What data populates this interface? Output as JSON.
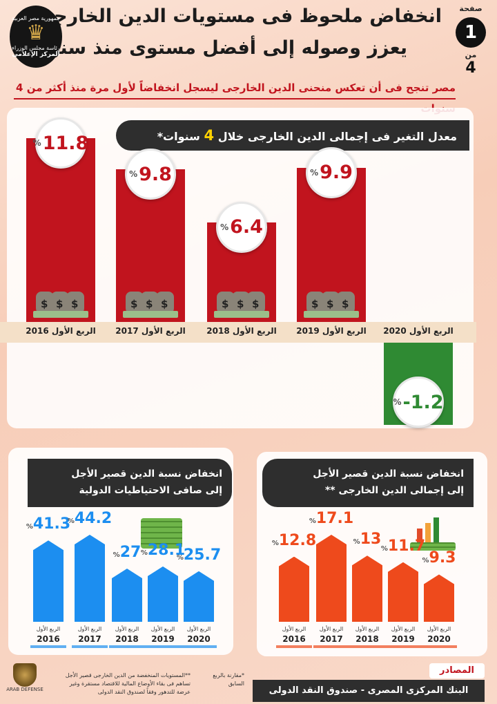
{
  "header": {
    "title_line1": "انخفاض ملحوظ فى مستويات الدين الخارجى",
    "title_line2": "يعزز وصوله إلى أفضل مستوى منذ سنوات",
    "page_label": "صفحة",
    "page_number": "1",
    "page_of": "من",
    "page_total": "4",
    "logo_text_top": "جمهورية مصر العربية",
    "logo_text_mid": "رئاسة مجلس الوزراء",
    "logo_text_bottom": "المركز الإعلامى"
  },
  "subtitle": "مصر تنجح فى أن تعكس منحنى الدين الخارجى ليسجل انخفاضاً لأول مرة منذ أكثر من 4 سنوات",
  "main_chart_title": {
    "before": "معدل التغير فى إجمالى الدين الخارجى خلال",
    "highlight": "4",
    "after": "سنوات*"
  },
  "colors": {
    "red": "#c1141e",
    "green": "#2f8a33",
    "blue": "#1c8ef0",
    "orange": "#ee4a1c",
    "dark": "#2e2e2e"
  },
  "pct_sign": "%",
  "chart_data": [
    {
      "type": "bar",
      "title": "معدل التغير فى إجمالى الدين الخارجى خلال 4 سنوات*",
      "categories": [
        "الربع الأول 2016",
        "الربع الأول 2017",
        "الربع الأول 2018",
        "الربع الأول 2019",
        "الربع الأول 2020"
      ],
      "values": [
        11.8,
        9.8,
        6.4,
        9.9,
        -1.2
      ],
      "labels": [
        "11.8",
        "9.8",
        "6.4",
        "9.9",
        "-1.2"
      ],
      "ylim": [
        -1.6,
        11.8
      ]
    },
    {
      "type": "bar",
      "title": "انخفاض نسبة الدين قصير الأجل إلى صافى الاحتياطيات الدولية",
      "title_line1": "انخفاض نسبة الدين قصير الأجل",
      "title_line2": "إلى صافى الاحتياطيات الدولية",
      "categories": [
        "2016",
        "2017",
        "2018",
        "2019",
        "2020"
      ],
      "category_prefix": "الربع الأول",
      "values": [
        41.3,
        44.2,
        27,
        28.1,
        25.7
      ],
      "labels": [
        "41.3",
        "44.2",
        "27",
        "28.1",
        "25.7"
      ],
      "ylim": [
        0,
        44.2
      ]
    },
    {
      "type": "bar",
      "title": "انخفاض نسبة الدين قصير الأجل إلى إجمالى الدين الخارجى **",
      "title_line1": "انخفاض نسبة الدين قصير الأجل",
      "title_line2": "إلى إجمالى الدين الخارجى **",
      "categories": [
        "2016",
        "2017",
        "2018",
        "2019",
        "2020"
      ],
      "category_prefix": "الربع الأول",
      "values": [
        12.8,
        17.1,
        13,
        11.7,
        9.3
      ],
      "labels": [
        "12.8",
        "17.1",
        "13",
        "11.7",
        "9.3"
      ],
      "ylim": [
        0,
        17.1
      ]
    }
  ],
  "footer": {
    "sources_label": "المصادر",
    "sources": "البنك المركزى المصرى - صندوق النقد الدولى",
    "note_star": "*مقارنة بالربع السابق",
    "note_double_star": "**المستويات المنخفضة من الدين الخارجى قصير الأجل تساهم فى بقاء الأوضاع المالية للاقتصاد مستقرة وغير عرضة للتدهور وفقاً لصندوق النقد الدولى",
    "arab_logo_text": "ARAB DEFENSE"
  }
}
